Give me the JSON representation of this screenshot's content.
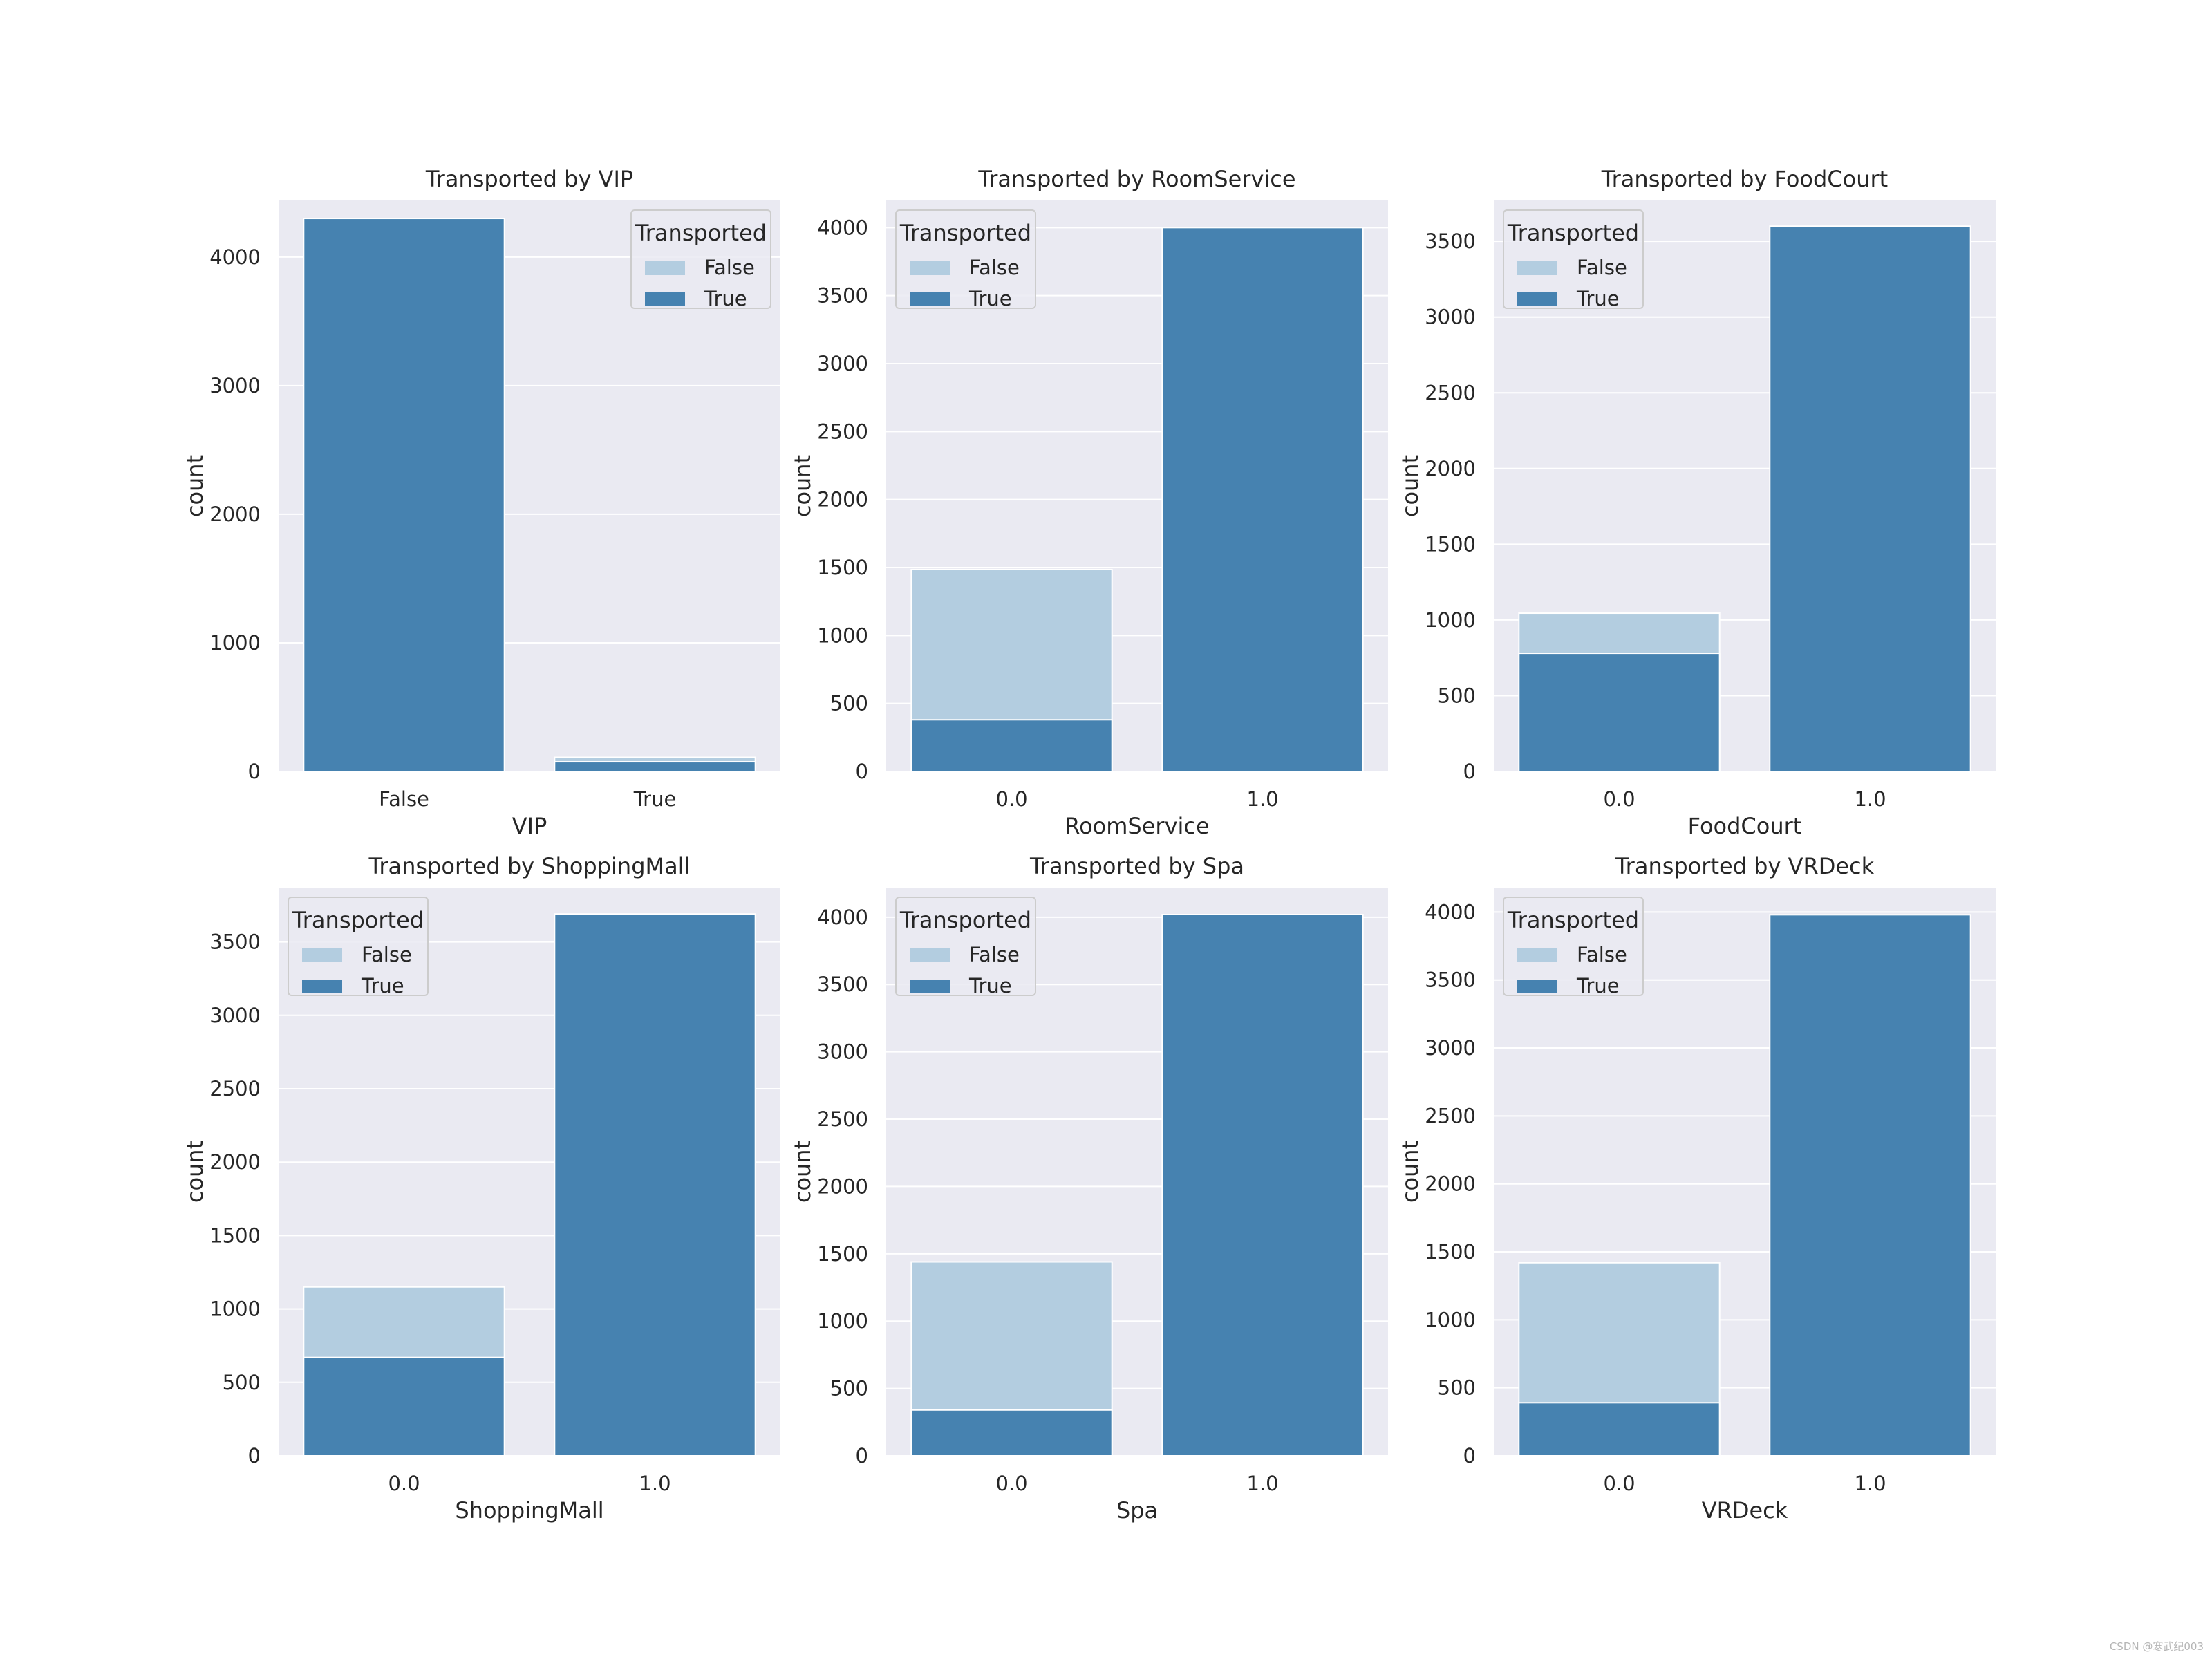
{
  "colors": {
    "false_bar": "#b3cde0",
    "true_bar": "#4682b0",
    "panel_bg": "#eaeaf2",
    "grid": "#ffffff",
    "legend_bg": "#eaeaf2",
    "legend_border": "#cccccc"
  },
  "watermark": "CSDN @寒武纪003",
  "chart_data": [
    {
      "type": "bar",
      "stacked": "overlay",
      "title": "Transported by VIP",
      "xlabel": "VIP",
      "ylabel": "count",
      "categories": [
        "False",
        "True"
      ],
      "ylim": [
        0,
        4440
      ],
      "yticks": [
        0,
        1000,
        2000,
        3000,
        4000
      ],
      "legend": {
        "title": "Transported",
        "position": "top-right",
        "entries": [
          "False",
          "True"
        ]
      },
      "series": [
        {
          "name": "False",
          "values": [
            0,
            110
          ]
        },
        {
          "name": "True",
          "values": [
            4300,
            75
          ]
        }
      ]
    },
    {
      "type": "bar",
      "stacked": "overlay",
      "title": "Transported by RoomService",
      "xlabel": "RoomService",
      "ylabel": "count",
      "categories": [
        "0.0",
        "1.0"
      ],
      "ylim": [
        0,
        4200
      ],
      "yticks": [
        0,
        500,
        1000,
        1500,
        2000,
        2500,
        3000,
        3500,
        4000
      ],
      "legend": {
        "title": "Transported",
        "position": "top-left",
        "entries": [
          "False",
          "True"
        ]
      },
      "series": [
        {
          "name": "False",
          "values": [
            1485,
            0
          ]
        },
        {
          "name": "True",
          "values": [
            380,
            4000
          ]
        }
      ]
    },
    {
      "type": "bar",
      "stacked": "overlay",
      "title": "Transported by FoodCourt",
      "xlabel": "FoodCourt",
      "ylabel": "count",
      "categories": [
        "0.0",
        "1.0"
      ],
      "ylim": [
        0,
        3770
      ],
      "yticks": [
        0,
        500,
        1000,
        1500,
        2000,
        2500,
        3000,
        3500
      ],
      "legend": {
        "title": "Transported",
        "position": "top-left",
        "entries": [
          "False",
          "True"
        ]
      },
      "series": [
        {
          "name": "False",
          "values": [
            1045,
            0
          ]
        },
        {
          "name": "True",
          "values": [
            780,
            3600
          ]
        }
      ]
    },
    {
      "type": "bar",
      "stacked": "overlay",
      "title": "Transported by ShoppingMall",
      "xlabel": "ShoppingMall",
      "ylabel": "count",
      "categories": [
        "0.0",
        "1.0"
      ],
      "ylim": [
        0,
        3870
      ],
      "yticks": [
        0,
        500,
        1000,
        1500,
        2000,
        2500,
        3000,
        3500
      ],
      "legend": {
        "title": "Transported",
        "position": "top-left",
        "entries": [
          "False",
          "True"
        ]
      },
      "series": [
        {
          "name": "False",
          "values": [
            1150,
            0
          ]
        },
        {
          "name": "True",
          "values": [
            670,
            3690
          ]
        }
      ]
    },
    {
      "type": "bar",
      "stacked": "overlay",
      "title": "Transported by Spa",
      "xlabel": "Spa",
      "ylabel": "count",
      "categories": [
        "0.0",
        "1.0"
      ],
      "ylim": [
        0,
        4220
      ],
      "yticks": [
        0,
        500,
        1000,
        1500,
        2000,
        2500,
        3000,
        3500,
        4000
      ],
      "legend": {
        "title": "Transported",
        "position": "top-left",
        "entries": [
          "False",
          "True"
        ]
      },
      "series": [
        {
          "name": "False",
          "values": [
            1440,
            0
          ]
        },
        {
          "name": "True",
          "values": [
            340,
            4020
          ]
        }
      ]
    },
    {
      "type": "bar",
      "stacked": "overlay",
      "title": "Transported by VRDeck",
      "xlabel": "VRDeck",
      "ylabel": "count",
      "categories": [
        "0.0",
        "1.0"
      ],
      "ylim": [
        0,
        4180
      ],
      "yticks": [
        0,
        500,
        1000,
        1500,
        2000,
        2500,
        3000,
        3500,
        4000
      ],
      "legend": {
        "title": "Transported",
        "position": "top-left",
        "entries": [
          "False",
          "True"
        ]
      },
      "series": [
        {
          "name": "False",
          "values": [
            1420,
            0
          ]
        },
        {
          "name": "True",
          "values": [
            390,
            3980
          ]
        }
      ]
    }
  ]
}
